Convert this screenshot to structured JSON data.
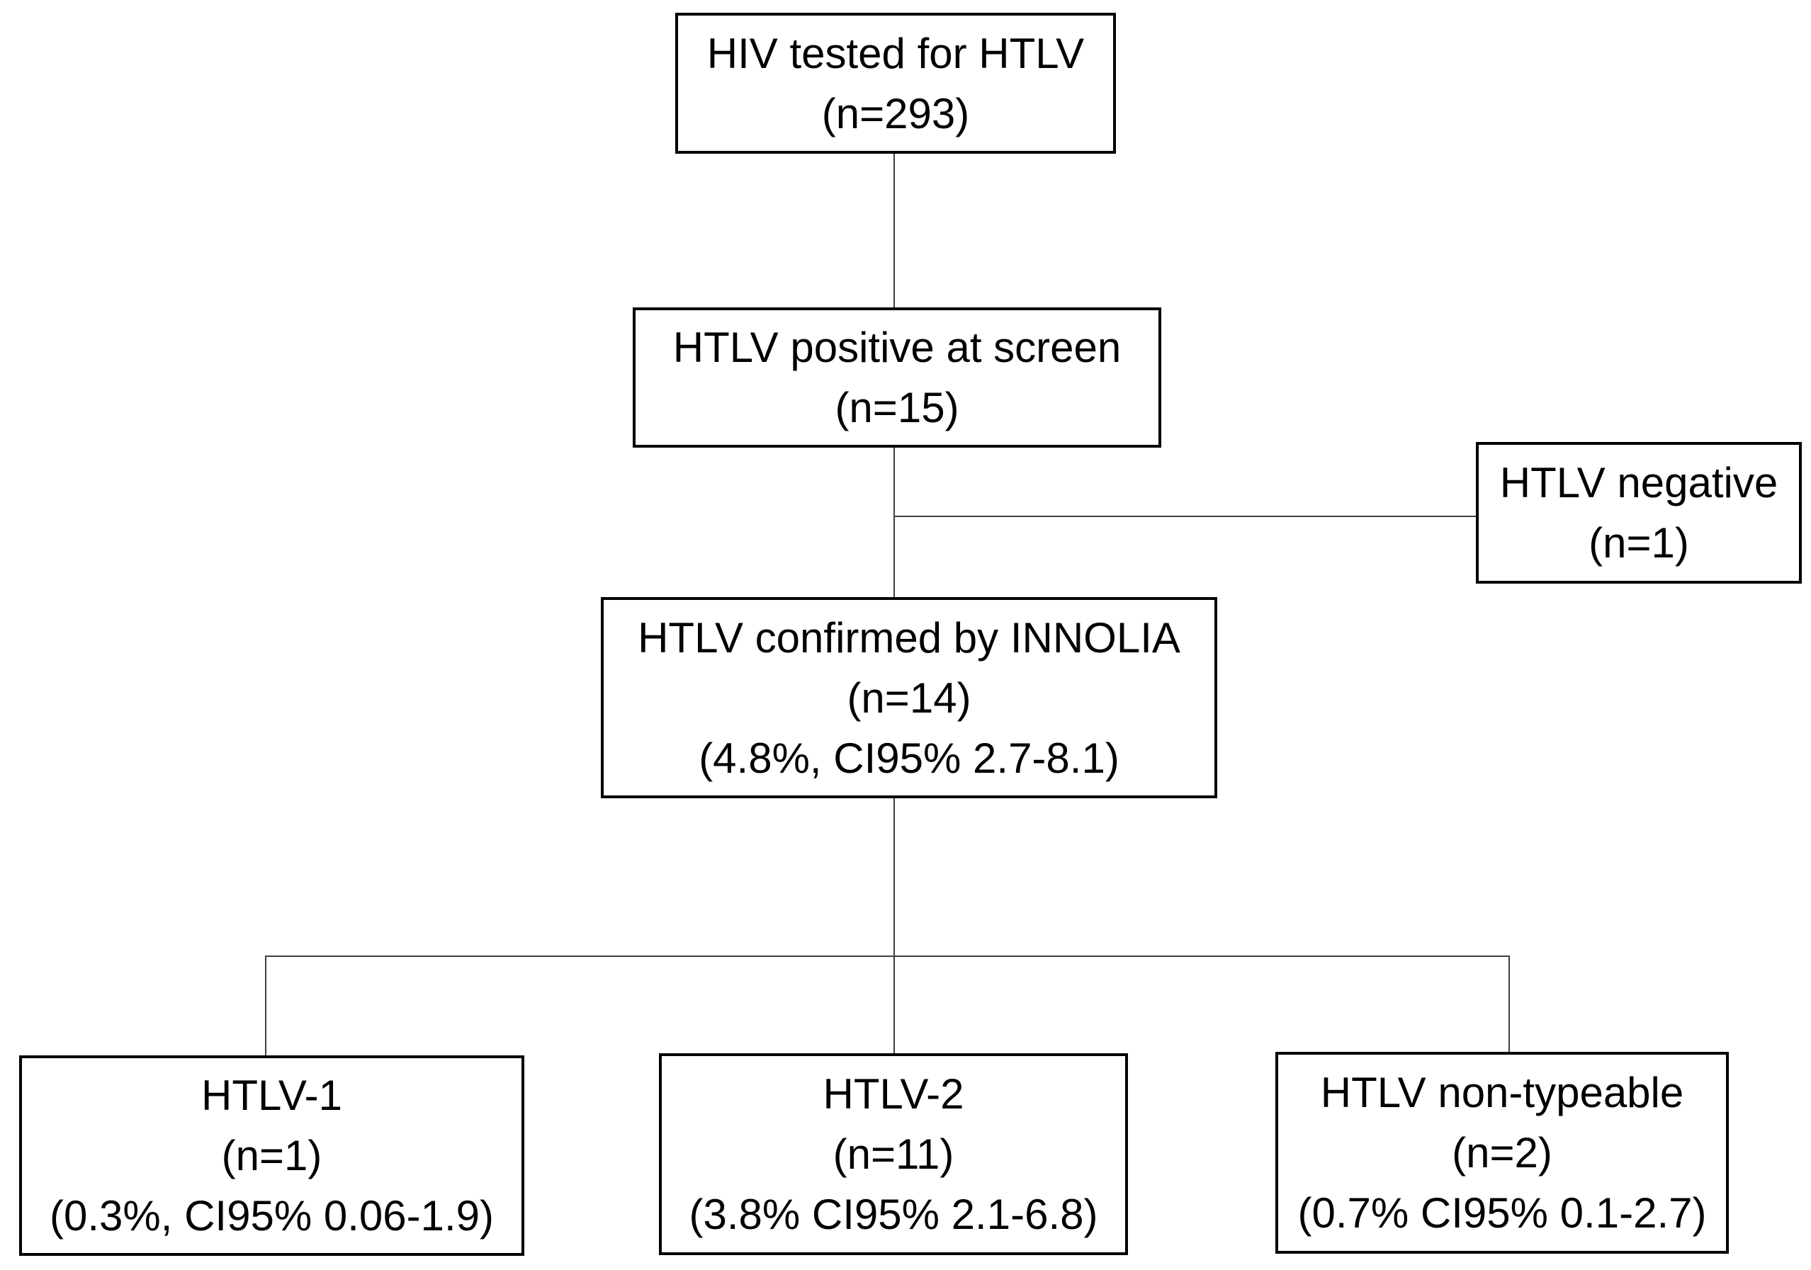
{
  "colors": {
    "background": "#ffffff",
    "box_border": "#000000",
    "box_fill": "#ffffff",
    "text": "#000000",
    "connector": "#3f3f3f"
  },
  "nodes": [
    {
      "id": "hiv-tested-for-htlv",
      "lines": [
        "HIV tested for HTLV",
        "(n=293)"
      ]
    },
    {
      "id": "htlv-positive-at-screen",
      "lines": [
        "HTLV positive at screen",
        "(n=15)"
      ]
    },
    {
      "id": "htlv-negative",
      "lines": [
        "HTLV negative",
        "(n=1)"
      ]
    },
    {
      "id": "htlv-confirmed-by-innolia",
      "lines": [
        "HTLV confirmed by INNOLIA",
        "(n=14)",
        "(4.8%, CI95% 2.7-8.1)"
      ]
    },
    {
      "id": "htlv-1",
      "lines": [
        "HTLV-1",
        "(n=1)",
        "(0.3%, CI95% 0.06-1.9)"
      ]
    },
    {
      "id": "htlv-2",
      "lines": [
        "HTLV-2",
        "(n=11)",
        "(3.8% CI95% 2.1-6.8)"
      ]
    },
    {
      "id": "htlv-non-typeable",
      "lines": [
        "HTLV non-typeable",
        "(n=2)",
        "(0.7% CI95% 0.1-2.7)"
      ]
    }
  ],
  "edges": [
    {
      "from": "hiv-tested-for-htlv",
      "to": "htlv-positive-at-screen"
    },
    {
      "from": "htlv-positive-at-screen",
      "to": "htlv-negative"
    },
    {
      "from": "htlv-positive-at-screen",
      "to": "htlv-confirmed-by-innolia"
    },
    {
      "from": "htlv-confirmed-by-innolia",
      "to": "htlv-1"
    },
    {
      "from": "htlv-confirmed-by-innolia",
      "to": "htlv-2"
    },
    {
      "from": "htlv-confirmed-by-innolia",
      "to": "htlv-non-typeable"
    }
  ]
}
